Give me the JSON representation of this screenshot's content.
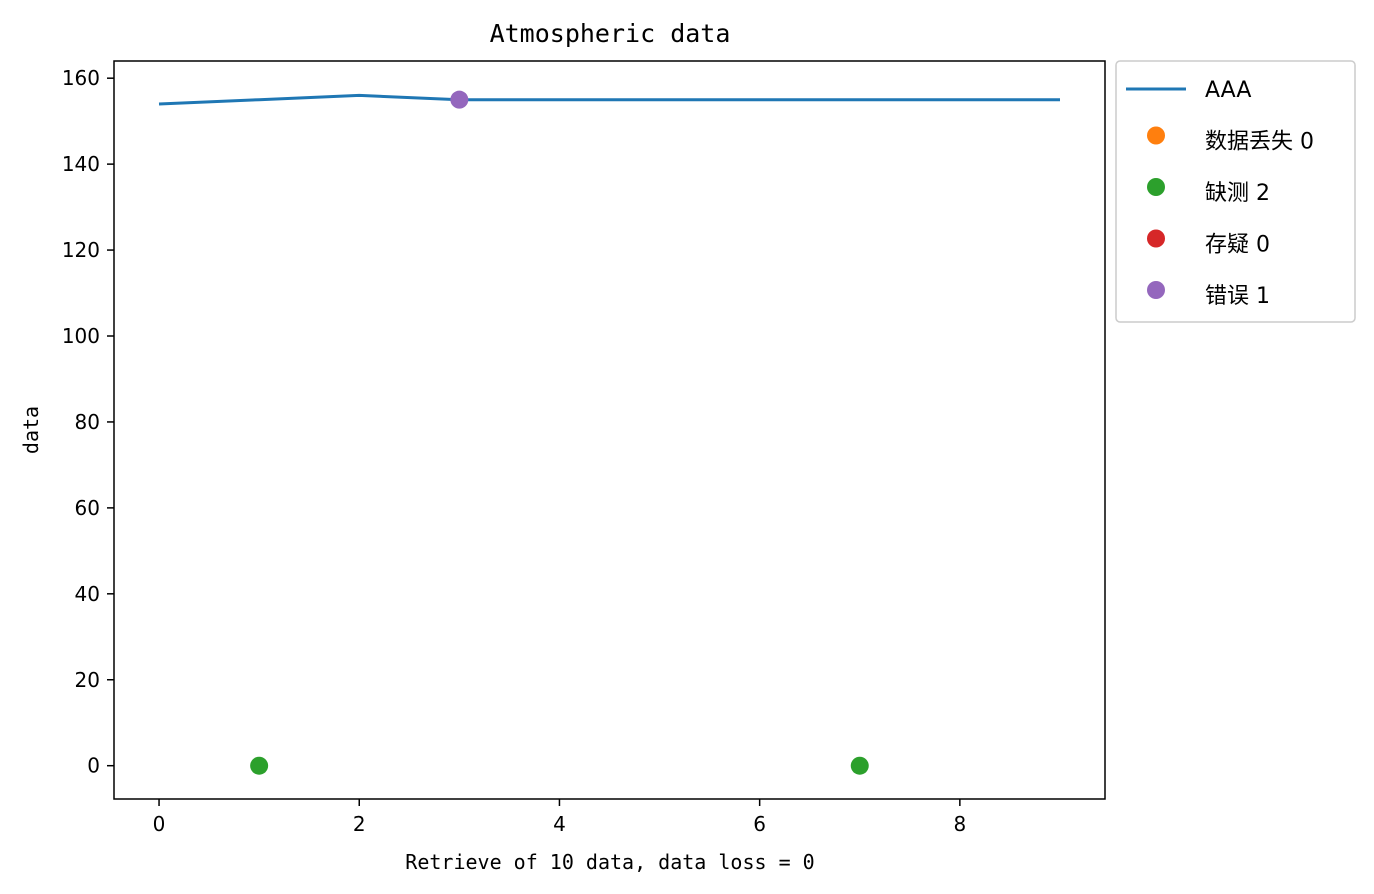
{
  "chart_data": {
    "type": "line",
    "title": "Atmospheric data",
    "xlabel": "Retrieve of 10 data, data loss = 0",
    "ylabel": "data",
    "xlim": [
      -0.45,
      9.45
    ],
    "ylim": [
      -7.75,
      164.0
    ],
    "xticks": [
      0,
      2,
      4,
      6,
      8
    ],
    "yticks": [
      0,
      20,
      40,
      60,
      80,
      100,
      120,
      140,
      160
    ],
    "grid": false,
    "legend_position": "outside-top-right",
    "series": [
      {
        "name": "AAA",
        "kind": "line",
        "color": "#1f77b4",
        "x": [
          0,
          1,
          2,
          3,
          4,
          5,
          6,
          7,
          8,
          9
        ],
        "y": [
          154,
          155,
          156,
          155,
          155,
          155,
          155,
          155,
          155,
          155
        ]
      },
      {
        "name": "数据丢失 0",
        "kind": "marker",
        "color": "#ff7f0e",
        "x": [],
        "y": []
      },
      {
        "name": "缺测 2",
        "kind": "marker",
        "color": "#2ca02c",
        "x": [
          1,
          7
        ],
        "y": [
          0,
          0
        ]
      },
      {
        "name": "存疑 0",
        "kind": "marker",
        "color": "#d62728",
        "x": [],
        "y": []
      },
      {
        "name": "错误 1",
        "kind": "marker",
        "color": "#9467bd",
        "x": [
          3
        ],
        "y": [
          155
        ]
      }
    ]
  }
}
